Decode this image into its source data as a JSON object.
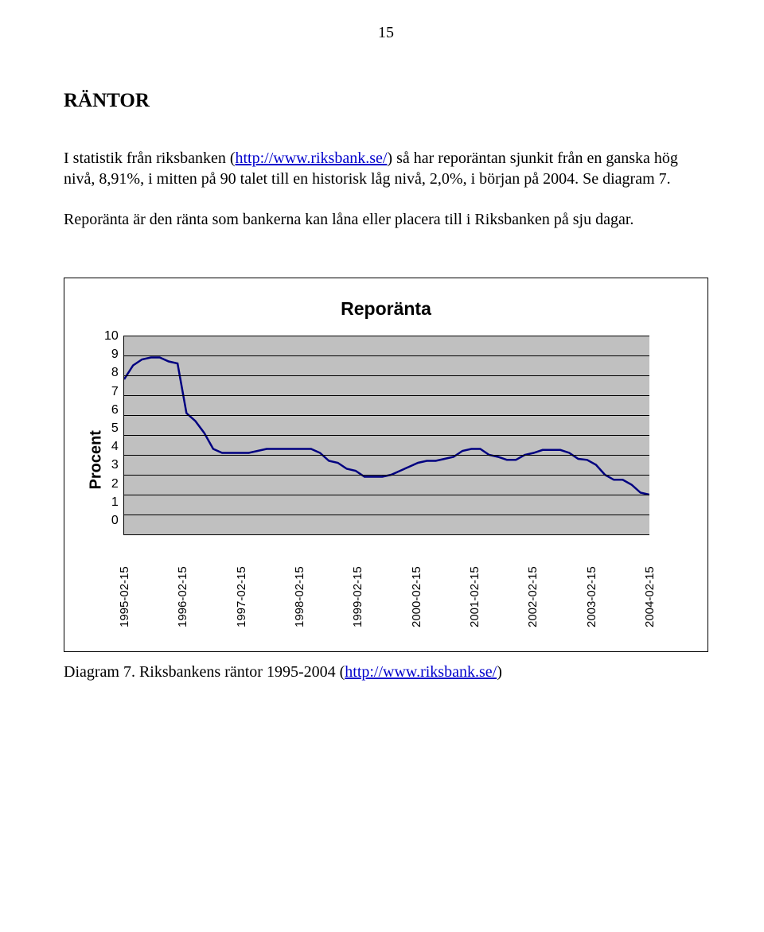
{
  "page_number": "15",
  "heading": "RÄNTOR",
  "paragraph1_a": "I statistik från riksbanken (",
  "paragraph1_link": "http://www.riksbank.se/",
  "paragraph1_b": ") så har reporäntan sjunkit från en ganska hög nivå, 8,91%, i mitten på 90 talet till en historisk låg nivå, 2,0%, i början på 2004. Se diagram 7.",
  "paragraph2": "Reporänta är den ränta som bankerna kan låna eller placera till i Riksbanken på sju dagar.",
  "chart": {
    "type": "line",
    "title": "Reporänta",
    "y_axis_title": "Procent",
    "ylim": [
      0,
      10
    ],
    "ytick_step": 1,
    "y_ticks": [
      "10",
      "9",
      "8",
      "7",
      "6",
      "5",
      "4",
      "3",
      "2",
      "1",
      "0"
    ],
    "x_labels": [
      "1995-02-15",
      "1996-02-15",
      "1997-02-15",
      "1998-02-15",
      "1999-02-15",
      "2000-02-15",
      "2001-02-15",
      "2002-02-15",
      "2003-02-15",
      "2004-02-15"
    ],
    "series_values": [
      7.8,
      8.5,
      8.8,
      8.9,
      8.9,
      8.7,
      8.6,
      6.1,
      5.7,
      5.1,
      4.3,
      4.1,
      4.1,
      4.1,
      4.1,
      4.2,
      4.3,
      4.3,
      4.3,
      4.3,
      4.3,
      4.3,
      4.1,
      3.7,
      3.6,
      3.3,
      3.2,
      2.9,
      2.9,
      2.9,
      3.0,
      3.2,
      3.4,
      3.6,
      3.7,
      3.7,
      3.8,
      3.9,
      4.2,
      4.3,
      4.3,
      4.0,
      3.9,
      3.75,
      3.75,
      4.0,
      4.1,
      4.25,
      4.25,
      4.25,
      4.1,
      3.8,
      3.75,
      3.5,
      3.0,
      2.75,
      2.75,
      2.5,
      2.1,
      2.0
    ],
    "line_color": "#000080",
    "line_width": 2.5,
    "plot_bg_color": "#c0c0c0",
    "grid_color": "#000000",
    "font_family": "Arial",
    "title_fontsize": 23,
    "label_fontsize": 16
  },
  "caption_a": "Diagram 7. Riksbankens räntor 1995-2004 (",
  "caption_link": "http://www.riksbank.se/",
  "caption_b": ")"
}
